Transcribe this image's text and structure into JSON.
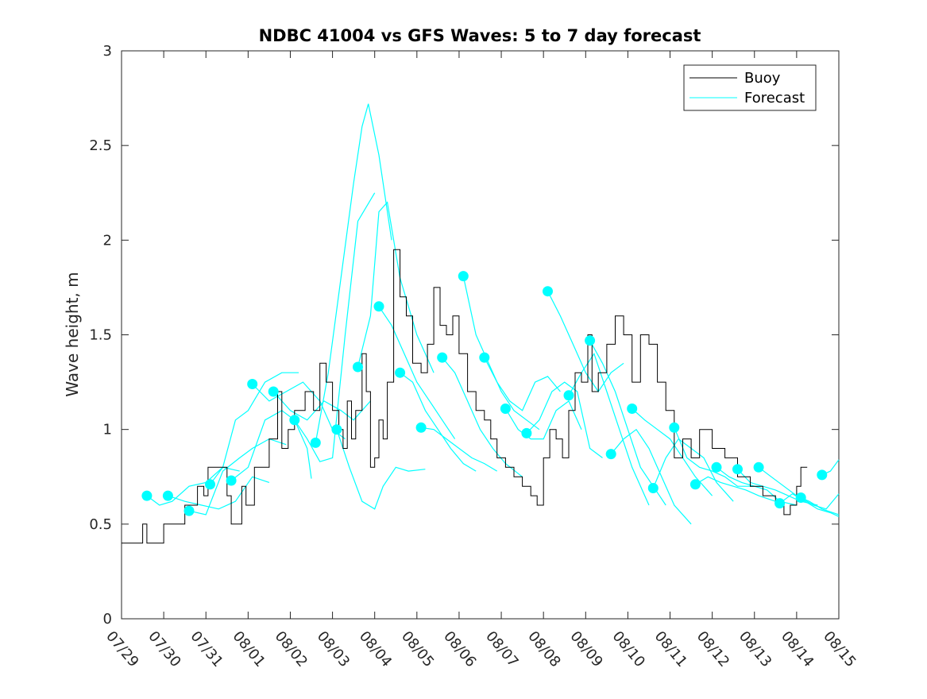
{
  "chart_data": {
    "type": "line",
    "title": "NDBC 41004 vs GFS Waves: 5 to 7 day forecast",
    "xlabel": "",
    "ylabel": "Wave height, m",
    "xlim": [
      0,
      17
    ],
    "ylim": [
      0,
      3
    ],
    "x_unit": "days since 07/29",
    "x_ticks": [
      0,
      1,
      2,
      3,
      4,
      5,
      6,
      7,
      8,
      9,
      10,
      11,
      12,
      13,
      14,
      15,
      16,
      17
    ],
    "x_tick_labels": [
      "07/29",
      "07/30",
      "07/31",
      "08/01",
      "08/02",
      "08/03",
      "08/04",
      "08/05",
      "08/06",
      "08/07",
      "08/08",
      "08/09",
      "08/10",
      "08/11",
      "08/12",
      "08/13",
      "08/14",
      "08/15"
    ],
    "y_ticks": [
      0,
      0.5,
      1,
      1.5,
      2,
      2.5,
      3
    ],
    "y_tick_labels": [
      "0",
      "0.5",
      "1",
      "1.5",
      "2",
      "2.5",
      "3"
    ],
    "grid": false,
    "legend": {
      "position": "top-right",
      "entries": [
        "Buoy",
        "Forecast"
      ]
    },
    "colors": {
      "buoy": "#000000",
      "forecast": "#00ffff"
    },
    "buoy": {
      "name": "Buoy",
      "x": [
        0,
        0.5,
        0.6,
        1,
        1.5,
        1.8,
        1.95,
        2.05,
        2.2,
        2.5,
        2.6,
        2.85,
        2.95,
        3.15,
        3.5,
        3.7,
        3.8,
        3.95,
        4.1,
        4.35,
        4.55,
        4.7,
        4.85,
        5.0,
        5.15,
        5.25,
        5.35,
        5.45,
        5.55,
        5.7,
        5.8,
        5.9,
        6.0,
        6.1,
        6.2,
        6.3,
        6.45,
        6.6,
        6.75,
        6.9,
        7.1,
        7.25,
        7.4,
        7.55,
        7.7,
        7.85,
        8.0,
        8.2,
        8.4,
        8.6,
        8.75,
        8.9,
        9.0,
        9.1,
        9.3,
        9.5,
        9.7,
        9.85,
        10.0,
        10.15,
        10.3,
        10.45,
        10.6,
        10.75,
        10.9,
        11.05,
        11.15,
        11.3,
        11.5,
        11.7,
        11.9,
        12.1,
        12.3,
        12.5,
        12.7,
        12.9,
        13.1,
        13.3,
        13.5,
        13.7,
        14.0,
        14.3,
        14.6,
        14.9,
        15.2,
        15.5,
        15.7,
        15.85,
        16.0,
        16.1,
        16.25
      ],
      "y": [
        0.4,
        0.5,
        0.4,
        0.5,
        0.6,
        0.7,
        0.65,
        0.8,
        0.8,
        0.65,
        0.5,
        0.7,
        0.6,
        0.8,
        0.95,
        1.2,
        0.9,
        1.0,
        1.1,
        1.2,
        1.1,
        1.35,
        1.25,
        1.1,
        1.0,
        0.9,
        1.15,
        0.95,
        1.1,
        1.4,
        1.2,
        0.8,
        0.85,
        1.05,
        0.95,
        1.25,
        1.95,
        1.7,
        1.6,
        1.35,
        1.3,
        1.45,
        1.75,
        1.55,
        1.5,
        1.6,
        1.4,
        1.2,
        1.1,
        1.05,
        0.95,
        0.85,
        0.85,
        0.8,
        0.75,
        0.7,
        0.65,
        0.6,
        0.85,
        1.0,
        0.95,
        0.85,
        1.1,
        1.3,
        1.25,
        1.5,
        1.2,
        1.3,
        1.45,
        1.6,
        1.5,
        1.25,
        1.5,
        1.45,
        1.25,
        1.1,
        0.85,
        0.95,
        0.85,
        1.0,
        0.9,
        0.85,
        0.75,
        0.7,
        0.65,
        0.6,
        0.55,
        0.6,
        0.7,
        0.8,
        0.8
      ]
    },
    "forecast_runs": [
      {
        "x": [
          0.6,
          0.9,
          1.2,
          1.6,
          2.0,
          2.4,
          2.8
        ],
        "y": [
          0.65,
          0.6,
          0.62,
          0.7,
          0.72,
          0.8,
          0.78
        ]
      },
      {
        "x": [
          1.1,
          1.5,
          1.9,
          2.3,
          2.7,
          3.1,
          3.5
        ],
        "y": [
          0.65,
          0.62,
          0.6,
          0.58,
          0.62,
          0.75,
          0.72
        ]
      },
      {
        "x": [
          1.6,
          2.0,
          2.4,
          2.8,
          3.1,
          3.5,
          3.9
        ],
        "y": [
          0.57,
          0.55,
          0.78,
          0.85,
          0.9,
          0.95,
          0.92
        ]
      },
      {
        "x": [
          2.1,
          2.4,
          2.7,
          3.0,
          3.4,
          3.8,
          4.2
        ],
        "y": [
          0.71,
          0.8,
          1.05,
          1.1,
          1.25,
          1.3,
          1.3
        ]
      },
      {
        "x": [
          2.6,
          3.0,
          3.4,
          3.8,
          4.1,
          4.4,
          4.5
        ],
        "y": [
          0.73,
          0.8,
          1.05,
          1.1,
          1.05,
          0.9,
          0.74
        ]
      },
      {
        "x": [
          3.1,
          3.5,
          3.9,
          4.3,
          4.7,
          5.0,
          5.3
        ],
        "y": [
          1.24,
          1.15,
          1.2,
          1.25,
          1.15,
          1.0,
          0.95
        ]
      },
      {
        "x": [
          3.6,
          4.0,
          4.4,
          4.8,
          5.2,
          5.5,
          5.9
        ],
        "y": [
          1.2,
          1.1,
          1.05,
          1.15,
          1.1,
          1.05,
          1.15
        ]
      },
      {
        "x": [
          4.1,
          4.4,
          4.7,
          5.0,
          5.3,
          5.6,
          6.0
        ],
        "y": [
          1.05,
          0.95,
          0.83,
          0.85,
          1.5,
          2.1,
          2.25
        ]
      },
      {
        "x": [
          4.6,
          4.9,
          5.2,
          5.5,
          5.7,
          5.85,
          6.1,
          6.4
        ],
        "y": [
          0.93,
          1.3,
          1.8,
          2.3,
          2.6,
          2.72,
          2.45,
          2.0
        ]
      },
      {
        "x": [
          5.1,
          5.4,
          5.7,
          6.0,
          6.2,
          6.5,
          6.8,
          7.2
        ],
        "y": [
          1.0,
          0.8,
          0.62,
          0.58,
          0.7,
          0.8,
          0.78,
          0.79
        ]
      },
      {
        "x": [
          5.6,
          5.9,
          6.1,
          6.3,
          6.6,
          7.0,
          7.4
        ],
        "y": [
          1.33,
          1.6,
          2.15,
          2.2,
          1.8,
          1.5,
          1.3
        ]
      },
      {
        "x": [
          6.1,
          6.4,
          6.7,
          7.0,
          7.3,
          7.6,
          7.9
        ],
        "y": [
          1.65,
          1.55,
          1.4,
          1.25,
          1.15,
          1.05,
          0.95
        ]
      },
      {
        "x": [
          6.6,
          6.9,
          7.2,
          7.5,
          7.8,
          8.1,
          8.4
        ],
        "y": [
          1.3,
          1.25,
          1.1,
          1.0,
          0.9,
          0.82,
          0.78
        ]
      },
      {
        "x": [
          7.1,
          7.4,
          7.7,
          8.0,
          8.3,
          8.6,
          8.9
        ],
        "y": [
          1.01,
          1.0,
          0.95,
          0.9,
          0.85,
          0.82,
          0.78
        ]
      },
      {
        "x": [
          7.6,
          7.9,
          8.2,
          8.5,
          8.8,
          9.1,
          9.5
        ],
        "y": [
          1.38,
          1.3,
          1.15,
          1.0,
          0.9,
          0.82,
          0.75
        ]
      },
      {
        "x": [
          8.1,
          8.4,
          8.7,
          9.0,
          9.3,
          9.6,
          9.9
        ],
        "y": [
          1.81,
          1.5,
          1.35,
          1.2,
          1.1,
          1.05,
          1.0
        ]
      },
      {
        "x": [
          8.6,
          8.9,
          9.2,
          9.5,
          9.8,
          10.1,
          10.4
        ],
        "y": [
          1.38,
          1.25,
          1.15,
          1.1,
          1.25,
          1.28,
          1.2
        ]
      },
      {
        "x": [
          9.1,
          9.4,
          9.7,
          10.0,
          10.3,
          10.6,
          10.9
        ],
        "y": [
          1.11,
          1.0,
          0.95,
          0.95,
          1.1,
          1.15,
          1.0
        ]
      },
      {
        "x": [
          9.6,
          9.9,
          10.2,
          10.5,
          10.8,
          11.1,
          11.4
        ],
        "y": [
          0.98,
          1.05,
          1.2,
          1.25,
          1.2,
          0.9,
          0.85
        ]
      },
      {
        "x": [
          10.1,
          10.4,
          10.7,
          11.0,
          11.3,
          11.6,
          11.9
        ],
        "y": [
          1.73,
          1.6,
          1.45,
          1.3,
          1.2,
          1.3,
          1.35
        ]
      },
      {
        "x": [
          10.6,
          10.9,
          11.2,
          11.5,
          11.8,
          12.1,
          12.5
        ],
        "y": [
          1.18,
          1.3,
          1.4,
          1.2,
          1.0,
          0.8,
          0.6
        ]
      },
      {
        "x": [
          11.1,
          11.4,
          11.7,
          12.0,
          12.3,
          12.6,
          12.9
        ],
        "y": [
          1.47,
          1.35,
          1.2,
          1.0,
          0.8,
          0.7,
          0.6
        ]
      },
      {
        "x": [
          11.6,
          11.9,
          12.2,
          12.5,
          12.8,
          13.1,
          13.5
        ],
        "y": [
          0.87,
          0.95,
          1.0,
          0.9,
          0.75,
          0.6,
          0.5
        ]
      },
      {
        "x": [
          12.1,
          12.4,
          12.7,
          13.0,
          13.3,
          13.6,
          14.0
        ],
        "y": [
          1.11,
          1.05,
          1.0,
          0.95,
          0.85,
          0.75,
          0.65
        ]
      },
      {
        "x": [
          12.6,
          12.9,
          13.2,
          13.5,
          13.8,
          14.1,
          14.5
        ],
        "y": [
          0.69,
          0.85,
          0.95,
          0.9,
          0.85,
          0.72,
          0.62
        ]
      },
      {
        "x": [
          13.1,
          13.4,
          13.7,
          14.0,
          14.3,
          14.6,
          15.0
        ],
        "y": [
          1.01,
          0.85,
          0.8,
          0.78,
          0.75,
          0.7,
          0.7
        ]
      },
      {
        "x": [
          13.6,
          13.9,
          14.2,
          14.5,
          14.8,
          15.1,
          15.5
        ],
        "y": [
          0.71,
          0.75,
          0.72,
          0.7,
          0.68,
          0.65,
          0.62
        ]
      },
      {
        "x": [
          14.1,
          14.4,
          14.7,
          15.0,
          15.3,
          15.6,
          16.0
        ],
        "y": [
          0.8,
          0.75,
          0.72,
          0.7,
          0.68,
          0.62,
          0.6
        ]
      },
      {
        "x": [
          14.6,
          14.9,
          15.2,
          15.5,
          15.8,
          16.1,
          16.5
        ],
        "y": [
          0.79,
          0.72,
          0.7,
          0.68,
          0.65,
          0.62,
          0.6
        ]
      },
      {
        "x": [
          15.1,
          15.4,
          15.7,
          16.0,
          16.3,
          16.6,
          17.0
        ],
        "y": [
          0.8,
          0.75,
          0.7,
          0.65,
          0.62,
          0.58,
          0.55
        ]
      },
      {
        "x": [
          15.6,
          15.9,
          16.2,
          16.5,
          16.8,
          17.0
        ],
        "y": [
          0.61,
          0.66,
          0.62,
          0.58,
          0.56,
          0.54
        ]
      },
      {
        "x": [
          16.1,
          16.4,
          16.7,
          17.0
        ],
        "y": [
          0.64,
          0.6,
          0.58,
          0.66
        ]
      },
      {
        "x": [
          16.6,
          16.8,
          17.0
        ],
        "y": [
          0.76,
          0.78,
          0.84
        ]
      }
    ]
  }
}
